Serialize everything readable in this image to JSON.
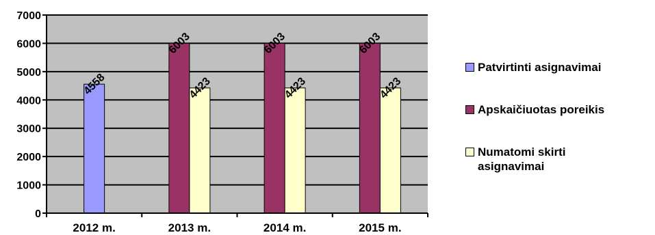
{
  "chart_data": {
    "type": "bar",
    "categories": [
      "2012 m.",
      "2013 m.",
      "2014 m.",
      "2015 m."
    ],
    "series": [
      {
        "name": "Patvirtinti asignavimai",
        "color": "#9999ff",
        "values": [
          4558,
          null,
          null,
          null
        ]
      },
      {
        "name": "Apskaičiuotas poreikis",
        "color": "#993366",
        "values": [
          null,
          6003,
          6003,
          6003
        ]
      },
      {
        "name": "Numatomi skirti asignavimai",
        "color": "#ffffcc",
        "values": [
          null,
          4423,
          4423,
          4423
        ]
      }
    ],
    "data_labels": {
      "patvirtinti": [
        "4558"
      ],
      "poreikis": [
        "6003",
        "6003",
        "6003"
      ],
      "numatomi": [
        "4423",
        "4423",
        "4423"
      ]
    },
    "y_ticks": [
      "0",
      "1000",
      "2000",
      "3000",
      "4000",
      "5000",
      "6000",
      "7000"
    ],
    "ylim": [
      0,
      7000
    ],
    "grid": true,
    "plot_background": "#c0c0c0",
    "legend_position": "right",
    "title": "",
    "xlabel": "",
    "ylabel": ""
  }
}
